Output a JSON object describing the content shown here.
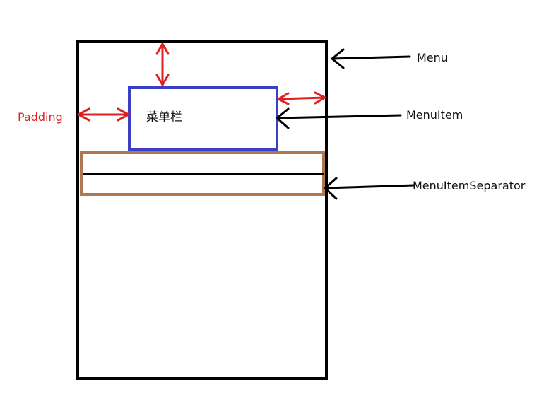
{
  "labels": {
    "menu": "Menu",
    "menu_item": "MenuItem",
    "menu_item_separator": "MenuItemSeparator",
    "padding": "Padding"
  },
  "menu_item": {
    "text": "菜单栏"
  },
  "colors": {
    "menu_border": "#000000",
    "menu_item_border": "#3b3fc4",
    "separator_border": "#b07850",
    "separator_line": "#000000",
    "padding_arrows": "#e02020",
    "pointer_arrows": "#000000",
    "padding_label": "#e02020"
  }
}
